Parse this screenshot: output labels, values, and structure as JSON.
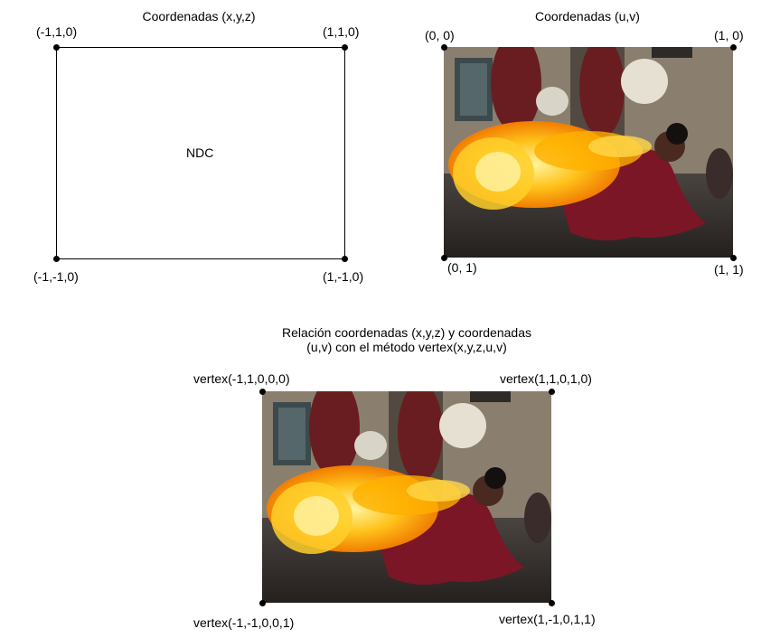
{
  "left_panel": {
    "title": "Coordenadas (x,y,z)",
    "label": "NDC",
    "corners": {
      "top_left": "(-1,1,0)",
      "top_right": "(1,1,0)",
      "bottom_left": "(-1,-1,0)",
      "bottom_right": "(1,-1,0)"
    }
  },
  "right_panel": {
    "title": "Coordenadas (u,v)",
    "corners": {
      "top_left": "(0, 0)",
      "top_right": "(1, 0)",
      "bottom_left": "(0, 1)",
      "bottom_right": "(1, 1)"
    }
  },
  "bottom_panel": {
    "title_line1": "Relación coordenadas (x,y,z) y coordenadas",
    "title_line2": "(u,v) con el método vertex(x,y,z,u,v)",
    "corners": {
      "top_left": "vertex(-1,1,0,0,0)",
      "top_right": "vertex(1,1,0,1,0)",
      "bottom_left": "vertex(-1,-1,0,0,1)",
      "bottom_right": "vertex(1,-1,0,1,1)"
    }
  },
  "colors": {
    "line": "#000000",
    "fire_outer": "#f5a000",
    "fire_inner": "#ffe36a",
    "costume": "#7a1626"
  }
}
